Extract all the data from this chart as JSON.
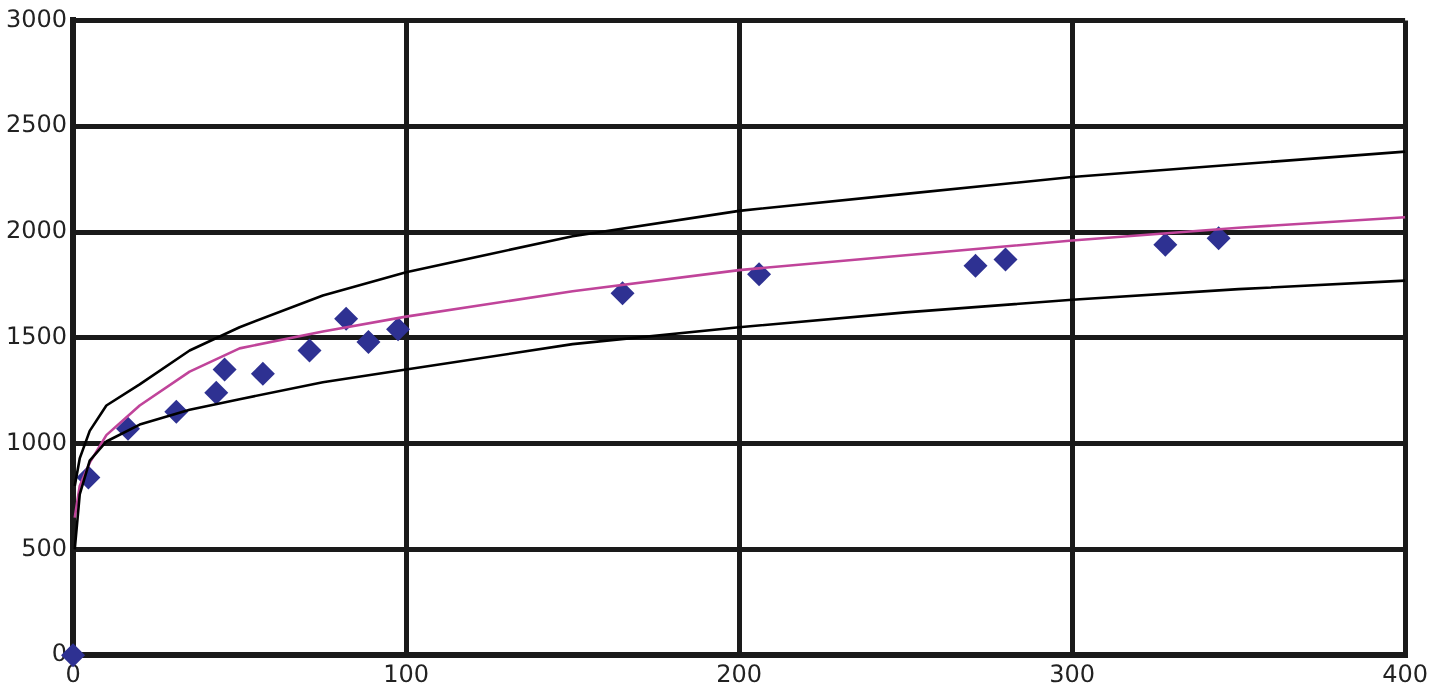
{
  "chart_data": {
    "type": "scatter",
    "xlim": [
      0,
      400
    ],
    "ylim": [
      0,
      3000
    ],
    "xticks": [
      0,
      100,
      200,
      300,
      400
    ],
    "yticks": [
      0,
      500,
      1000,
      1500,
      2000,
      2500,
      3000
    ],
    "grid": true,
    "legend": false,
    "series": [
      {
        "type": "line",
        "color": "#000000",
        "marker": "none",
        "line_style": "solid",
        "x": [
          0.5,
          2,
          5,
          10,
          20,
          35,
          50,
          75,
          100,
          150,
          200,
          250,
          300,
          350,
          400
        ],
        "values": [
          800,
          930,
          1060,
          1180,
          1280,
          1440,
          1550,
          1700,
          1810,
          1980,
          2100,
          2180,
          2260,
          2320,
          2380
        ]
      },
      {
        "type": "line",
        "color": "#000000",
        "marker": "none",
        "line_style": "solid",
        "x": [
          0.5,
          2,
          5,
          10,
          20,
          35,
          50,
          75,
          100,
          150,
          200,
          250,
          300,
          350,
          400
        ],
        "values": [
          500,
          760,
          920,
          1010,
          1090,
          1160,
          1210,
          1290,
          1350,
          1470,
          1550,
          1620,
          1680,
          1730,
          1770
        ]
      },
      {
        "type": "line",
        "color": "#c0449a",
        "marker": "none",
        "line_style": "solid",
        "x": [
          0.5,
          2,
          5,
          10,
          20,
          35,
          50,
          75,
          100,
          150,
          200,
          250,
          300,
          350,
          400
        ],
        "values": [
          650,
          800,
          910,
          1040,
          1180,
          1340,
          1450,
          1530,
          1600,
          1720,
          1820,
          1890,
          1960,
          2020,
          2070
        ]
      },
      {
        "type": "scatter",
        "color": "#2e3192",
        "marker": "diamond",
        "x": [
          0,
          4.6,
          16.5,
          31,
          43,
          45.5,
          57,
          71,
          82,
          88.7,
          97.6,
          165,
          206,
          271,
          280,
          328,
          344
        ],
        "values": [
          0,
          840,
          1070,
          1150,
          1240,
          1350,
          1330,
          1440,
          1590,
          1480,
          1540,
          1710,
          1800,
          1840,
          1870,
          1940,
          1970
        ]
      }
    ]
  }
}
